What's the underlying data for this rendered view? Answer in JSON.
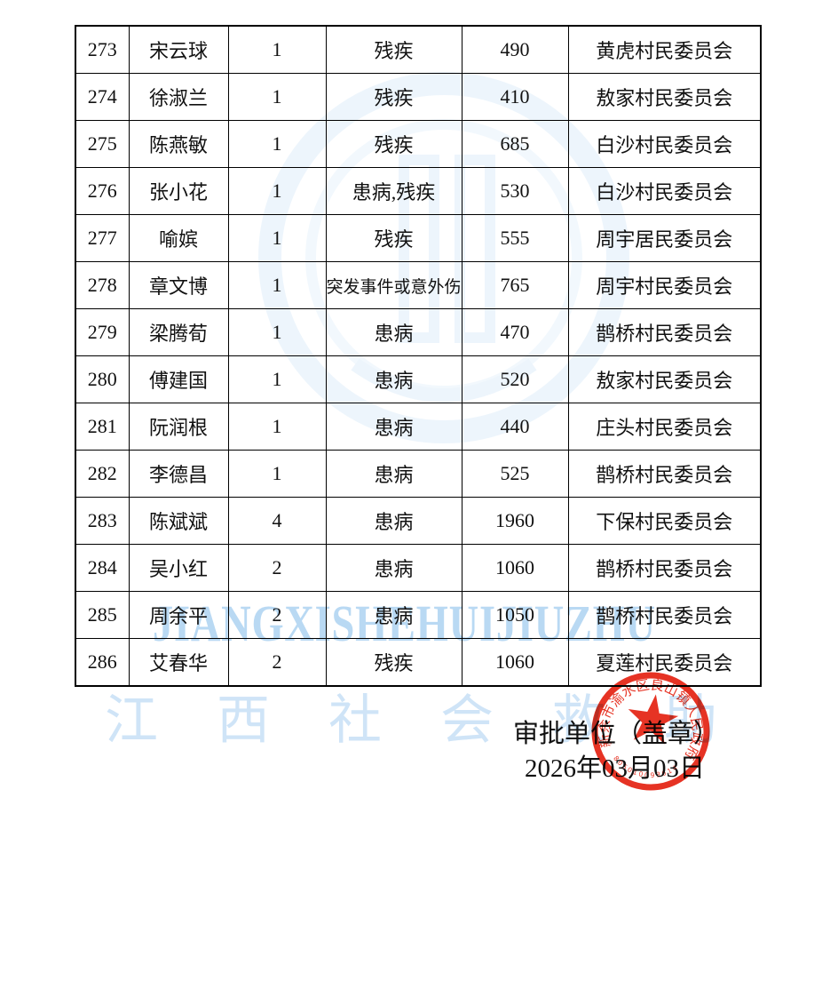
{
  "watermark": {
    "latin": "JIANGXISHEHUIJIUZHU",
    "hanzi": "江西社会救助",
    "latin_color": "#b9d9f3",
    "hanzi_color": "#cfe4f7"
  },
  "footer": {
    "approval_label": "审批单位（盖章）",
    "date_label": "2026年03月03日"
  },
  "stamp": {
    "ring_text": "新余市渝水区良山镇人民政府",
    "serial": "805010093614",
    "color": "#e42313",
    "star_icon": "five-pointed-star"
  },
  "table": {
    "fields": [
      "no",
      "name",
      "count",
      "reason",
      "amount",
      "committee"
    ],
    "rows": [
      {
        "no": "273",
        "name": "宋云球",
        "count": "1",
        "reason": "残疾",
        "amount": "490",
        "committee": "黄虎村民委员会"
      },
      {
        "no": "274",
        "name": "徐淑兰",
        "count": "1",
        "reason": "残疾",
        "amount": "410",
        "committee": "敖家村民委员会"
      },
      {
        "no": "275",
        "name": "陈燕敏",
        "count": "1",
        "reason": "残疾",
        "amount": "685",
        "committee": "白沙村民委员会"
      },
      {
        "no": "276",
        "name": "张小花",
        "count": "1",
        "reason": "患病,残疾",
        "amount": "530",
        "committee": "白沙村民委员会"
      },
      {
        "no": "277",
        "name": "喻嫔",
        "count": "1",
        "reason": "残疾",
        "amount": "555",
        "committee": "周宇居民委员会"
      },
      {
        "no": "278",
        "name": "章文博",
        "count": "1",
        "reason": "突发事件或意外伤",
        "amount": "765",
        "committee": "周宇村民委员会"
      },
      {
        "no": "279",
        "name": "梁腾荀",
        "count": "1",
        "reason": "患病",
        "amount": "470",
        "committee": "鹊桥村民委员会"
      },
      {
        "no": "280",
        "name": "傅建国",
        "count": "1",
        "reason": "患病",
        "amount": "520",
        "committee": "敖家村民委员会"
      },
      {
        "no": "281",
        "name": "阮润根",
        "count": "1",
        "reason": "患病",
        "amount": "440",
        "committee": "庄头村民委员会"
      },
      {
        "no": "282",
        "name": "李德昌",
        "count": "1",
        "reason": "患病",
        "amount": "525",
        "committee": "鹊桥村民委员会"
      },
      {
        "no": "283",
        "name": "陈斌斌",
        "count": "4",
        "reason": "患病",
        "amount": "1960",
        "committee": "下保村民委员会"
      },
      {
        "no": "284",
        "name": "吴小红",
        "count": "2",
        "reason": "患病",
        "amount": "1060",
        "committee": "鹊桥村民委员会"
      },
      {
        "no": "285",
        "name": "周余平",
        "count": "2",
        "reason": "患病",
        "amount": "1050",
        "committee": "鹊桥村民委员会"
      },
      {
        "no": "286",
        "name": "艾春华",
        "count": "2",
        "reason": "残疾",
        "amount": "1060",
        "committee": "夏莲村民委员会"
      }
    ]
  }
}
